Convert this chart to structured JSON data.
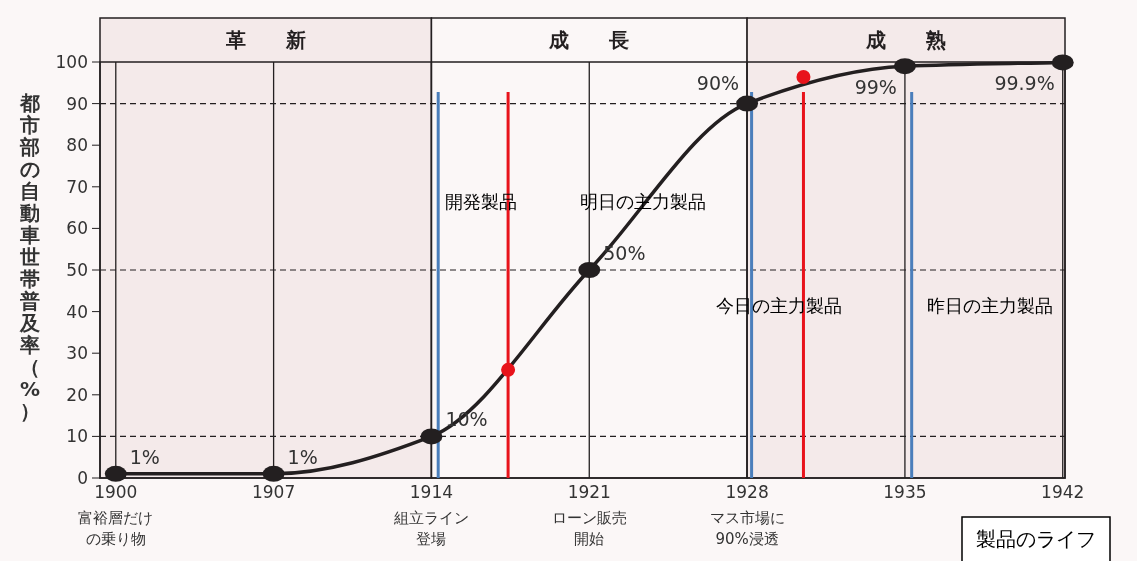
{
  "chart_data": {
    "type": "line",
    "ylabel": "都市部の自動車世帯普及率（%）",
    "x": [
      1900,
      1907,
      1914,
      1921,
      1928,
      1935,
      1942
    ],
    "series": [
      {
        "color": "#231f20",
        "values": [
          1,
          1,
          10,
          50,
          90,
          99,
          99.9
        ],
        "value_labels": [
          "1%",
          "1%",
          "10%",
          "50%",
          "90%",
          "99%",
          "99.9%"
        ]
      },
      {
        "type": "scatter",
        "color": "#e8131b",
        "x": [
          1917.4,
          1930.5
        ],
        "values": [
          26,
          96.4
        ]
      }
    ],
    "marker": "circle",
    "xlim": [
      1899.3,
      1942.1
    ],
    "xticks": [
      1900,
      1907,
      1914,
      1921,
      1928,
      1935,
      1942
    ],
    "ylim": [
      0,
      100
    ],
    "yticks": [
      0,
      10,
      20,
      30,
      40,
      50,
      60,
      70,
      80,
      90,
      100
    ],
    "grid": "x",
    "bands": [
      {
        "axis": "x",
        "from": 1899.3,
        "to": 1914,
        "label": "革　　新",
        "color": "#f4eaea"
      },
      {
        "axis": "x",
        "from": 1914,
        "to": 1928,
        "label": "成　　長",
        "color": "#fbf7f7"
      },
      {
        "axis": "x",
        "from": 1928,
        "to": 1942.1,
        "label": "成　　熟",
        "color": "#f4eaea"
      }
    ],
    "ref_lines": [
      {
        "axis": "y",
        "value": 10,
        "line_style": "dashed",
        "color": "#231f20"
      },
      {
        "axis": "y",
        "value": 50,
        "line_style": "dashed",
        "color": "#231f20"
      },
      {
        "axis": "y",
        "value": 90,
        "line_style": "dashed",
        "color": "#231f20"
      },
      {
        "axis": "x",
        "value": 1914.3,
        "color": "#4a7ebb"
      },
      {
        "axis": "x",
        "value": 1928.2,
        "color": "#4a7ebb"
      },
      {
        "axis": "x",
        "value": 1935.3,
        "color": "#4a7ebb"
      },
      {
        "axis": "x",
        "value": 1917.4,
        "color": "#e8131b"
      },
      {
        "axis": "x",
        "value": 1930.5,
        "color": "#e8131b"
      }
    ],
    "annotations": [
      "開発製品",
      "明日の主力製品",
      "今日の主力製品",
      "昨日の主力製品",
      "富裕層だけの乗り物",
      "組立ライン登場",
      "ローン販売開始",
      "マス市場に90%浸透",
      "製品のライフ"
    ]
  }
}
